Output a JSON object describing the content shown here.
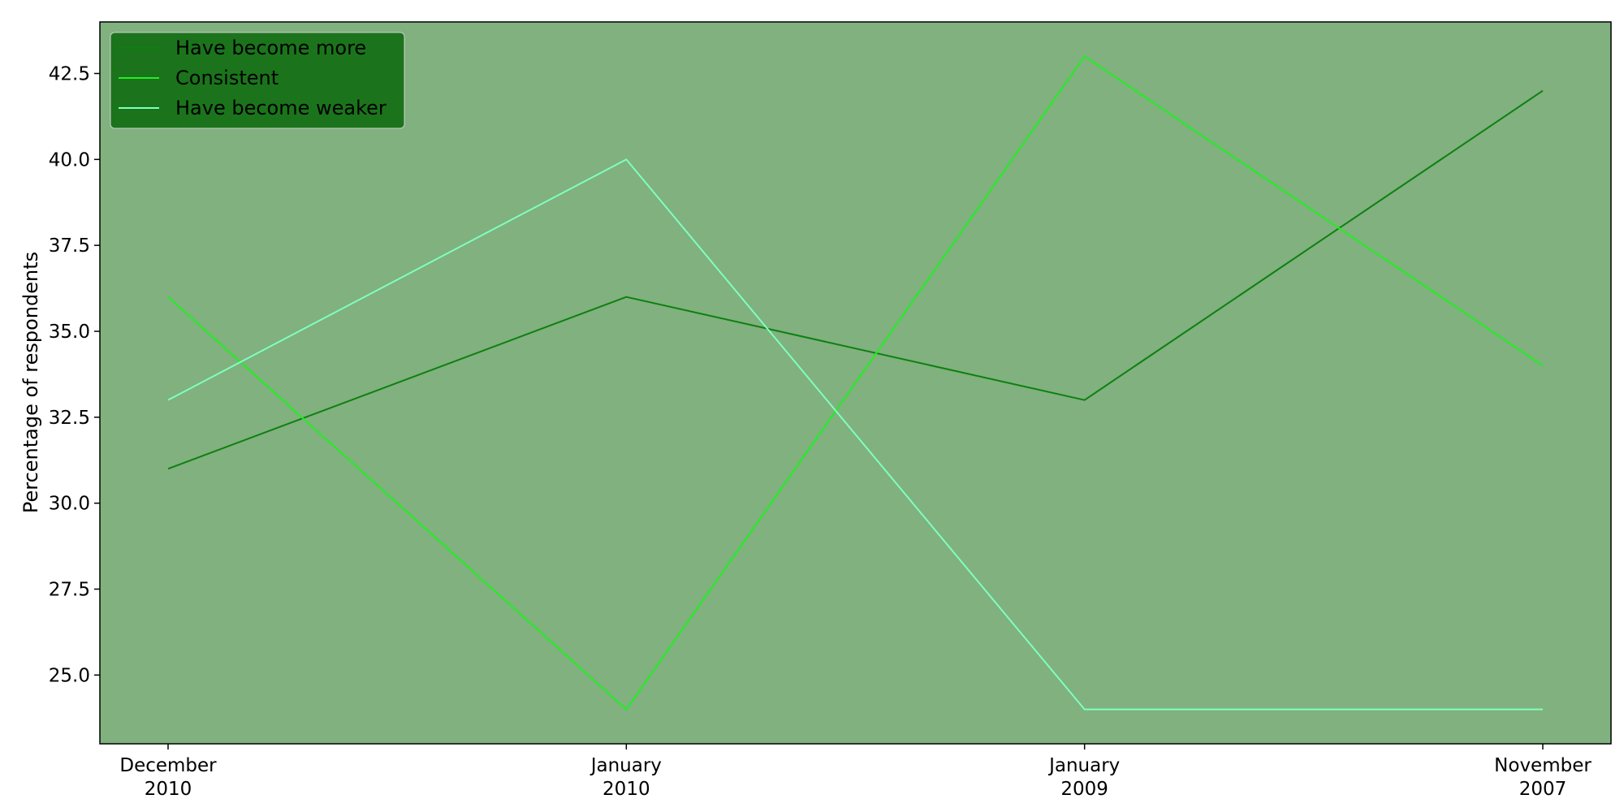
{
  "chart_data": {
    "type": "line",
    "categories": [
      [
        "December",
        "2010"
      ],
      [
        "January",
        "2010"
      ],
      [
        "January",
        "2009"
      ],
      [
        "November",
        "2007"
      ]
    ],
    "ylabel": "Percentage of respondents",
    "xlabel": "",
    "title": "",
    "ylim": [
      23,
      44
    ],
    "yticks": [
      "25.0",
      "27.5",
      "30.0",
      "32.5",
      "35.0",
      "37.5",
      "40.0",
      "42.5"
    ],
    "grid": false,
    "legend_position": "top-left",
    "colors": {
      "plot_background": "#80b17f",
      "legend_background": "#1a731a",
      "frame": "#000000"
    },
    "series": [
      {
        "name": "Have become more",
        "color": "#0e800e",
        "values": [
          31,
          36,
          33,
          42
        ]
      },
      {
        "name": "Consistent",
        "color": "#22ee22",
        "values": [
          36,
          24,
          43,
          34
        ]
      },
      {
        "name": "Have become weaker",
        "color": "#7fffbf",
        "values": [
          33,
          40,
          24,
          24
        ]
      }
    ]
  }
}
